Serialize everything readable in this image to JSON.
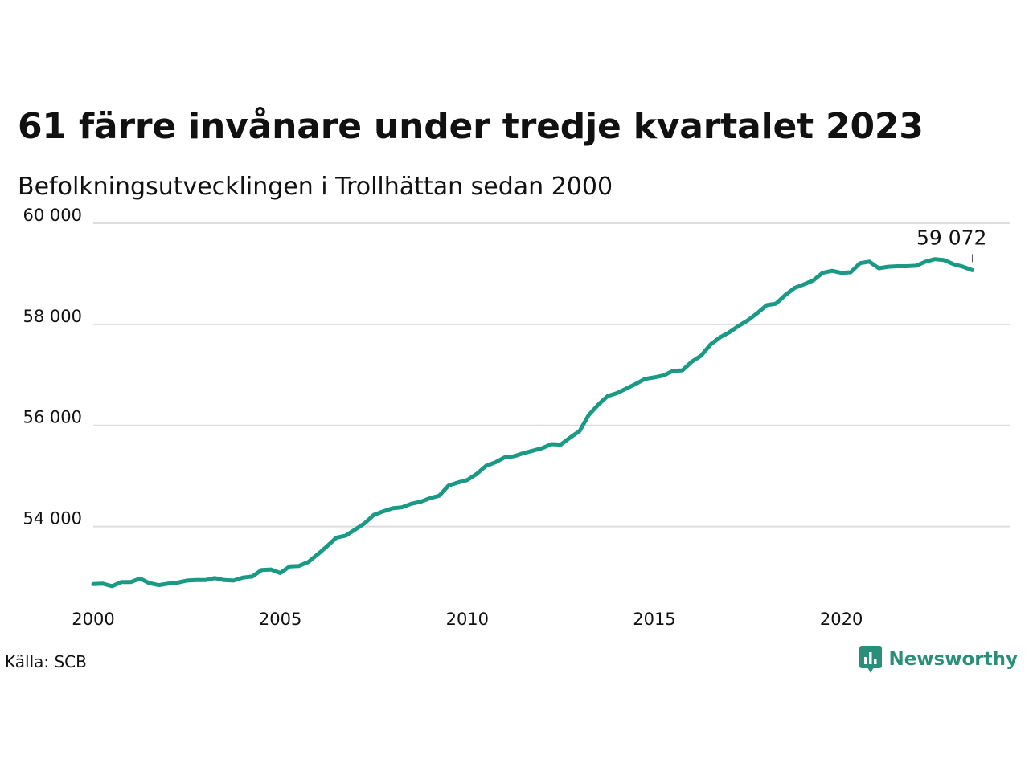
{
  "title": "61 färre invånare under tredje kvartalet 2023",
  "subtitle": "Befolkningsutvecklingen i Trollhättan sedan 2000",
  "source": "Källa: SCB",
  "brand": "Newsworthy",
  "colors": {
    "line": "#1a9a85",
    "grid": "#dddddd",
    "text": "#111111",
    "brand": "#2a8f7a"
  },
  "chart_data": {
    "type": "line",
    "title": "61 färre invånare under tredje kvartalet 2023",
    "subtitle": "Befolkningsutvecklingen i Trollhättan sedan 2000",
    "xlabel": "",
    "ylabel": "",
    "xlim": [
      2000,
      2024.5
    ],
    "ylim": [
      52500,
      60000
    ],
    "grid": true,
    "x_ticks": [
      2000,
      2005,
      2010,
      2015,
      2020
    ],
    "x_tick_labels": [
      "2000",
      "2005",
      "2010",
      "2015",
      "2020"
    ],
    "y_ticks": [
      54000,
      56000,
      58000,
      60000
    ],
    "y_tick_labels": [
      "54 000",
      "56 000",
      "58 000",
      "60 000"
    ],
    "annotation": {
      "label": "59 072",
      "x": 2023.5,
      "y": 59072
    },
    "series": [
      {
        "x": [
          2000.0,
          2000.25,
          2000.5,
          2000.75,
          2001.0,
          2001.25,
          2001.5,
          2001.75,
          2002.0,
          2002.25,
          2002.5,
          2002.75,
          2003.0,
          2003.25,
          2003.5,
          2003.75,
          2004.0,
          2004.25,
          2004.5,
          2004.75,
          2005.0,
          2005.25,
          2005.5,
          2005.75,
          2006.0,
          2006.25,
          2006.5,
          2006.75,
          2007.0,
          2007.25,
          2007.5,
          2007.75,
          2008.0,
          2008.25,
          2008.5,
          2008.75,
          2009.0,
          2009.25,
          2009.5,
          2009.75,
          2010.0,
          2010.25,
          2010.5,
          2010.75,
          2011.0,
          2011.25,
          2011.5,
          2011.75,
          2012.0,
          2012.25,
          2012.5,
          2012.75,
          2013.0,
          2013.25,
          2013.5,
          2013.75,
          2014.0,
          2014.25,
          2014.5,
          2014.75,
          2015.0,
          2015.25,
          2015.5,
          2015.75,
          2016.0,
          2016.25,
          2016.5,
          2016.75,
          2017.0,
          2017.25,
          2017.5,
          2017.75,
          2018.0,
          2018.25,
          2018.5,
          2018.75,
          2019.0,
          2019.25,
          2019.5,
          2019.75,
          2020.0,
          2020.25,
          2020.5,
          2020.75,
          2021.0,
          2021.25,
          2021.5,
          2021.75,
          2022.0,
          2022.25,
          2022.5,
          2022.75,
          2023.0,
          2023.25,
          2023.5
        ],
        "values": [
          52860,
          52870,
          52820,
          52900,
          52900,
          52970,
          52880,
          52840,
          52870,
          52890,
          52930,
          52940,
          52940,
          52980,
          52940,
          52930,
          52990,
          53010,
          53140,
          53150,
          53080,
          53210,
          53220,
          53300,
          53450,
          53610,
          53780,
          53820,
          53940,
          54060,
          54230,
          54300,
          54360,
          54380,
          54450,
          54490,
          54560,
          54610,
          54810,
          54870,
          54920,
          55040,
          55200,
          55270,
          55370,
          55390,
          55450,
          55500,
          55550,
          55630,
          55620,
          55760,
          55890,
          56210,
          56410,
          56580,
          56640,
          56730,
          56820,
          56920,
          56950,
          56990,
          57080,
          57090,
          57260,
          57380,
          57600,
          57740,
          57840,
          57970,
          58080,
          58220,
          58380,
          58410,
          58580,
          58720,
          58790,
          58870,
          59020,
          59060,
          59020,
          59030,
          59210,
          59240,
          59110,
          59140,
          59150,
          59150,
          59160,
          59240,
          59290,
          59270,
          59190,
          59140,
          59072
        ]
      }
    ]
  }
}
